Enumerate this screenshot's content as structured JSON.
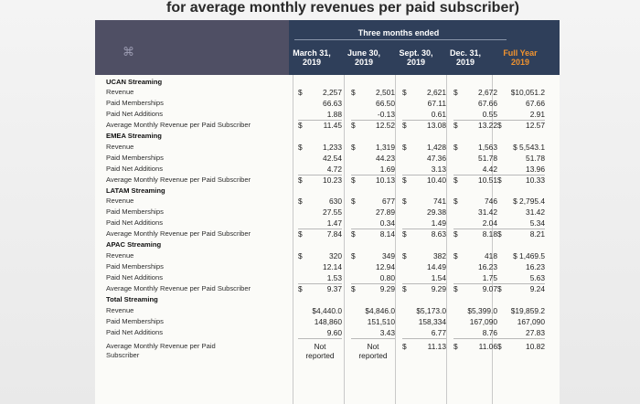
{
  "heading": "for average monthly revenues per paid subscriber)",
  "table": {
    "period_label": "Three months ended",
    "columns": [
      {
        "line1": "March 31,",
        "line2": "2019"
      },
      {
        "line1": "June 30,",
        "line2": "2019"
      },
      {
        "line1": "Sept. 30,",
        "line2": "2019"
      },
      {
        "line1": "Dec. 31,",
        "line2": "2019"
      },
      {
        "line1": "Full Year",
        "line2": "2019"
      }
    ],
    "rows": [
      {
        "label": "UCAN Streaming",
        "section": true
      },
      {
        "label": "Revenue",
        "values": [
          "2,257",
          "2,501",
          "2,621",
          "2,672",
          "$10,051.2"
        ],
        "dollar": [
          true,
          true,
          true,
          true,
          false
        ]
      },
      {
        "label": "Paid Memberships",
        "values": [
          "66.63",
          "66.50",
          "67.11",
          "67.66",
          "67.66"
        ]
      },
      {
        "label": "Paid Net Additions",
        "values": [
          "1.88",
          "-0.13",
          "0.61",
          "0.55",
          "2.91"
        ]
      },
      {
        "label": "Average Monthly Revenue per Paid Subscriber",
        "values": [
          "11.45",
          "12.52",
          "13.08",
          "13.22",
          "12.57"
        ],
        "dollar": [
          true,
          true,
          true,
          true,
          true
        ]
      },
      {
        "label": "EMEA Streaming",
        "section": true
      },
      {
        "label": "Revenue",
        "values": [
          "1,233",
          "1,319",
          "1,428",
          "1,563",
          "$ 5,543.1"
        ],
        "dollar": [
          true,
          true,
          true,
          true,
          false
        ]
      },
      {
        "label": "Paid Memberships",
        "values": [
          "42.54",
          "44.23",
          "47.36",
          "51.78",
          "51.78"
        ]
      },
      {
        "label": "Paid Net Additions",
        "values": [
          "4.72",
          "1.69",
          "3.13",
          "4.42",
          "13.96"
        ]
      },
      {
        "label": "Average Monthly Revenue per Paid Subscriber",
        "values": [
          "10.23",
          "10.13",
          "10.40",
          "10.51",
          "10.33"
        ],
        "dollar": [
          true,
          true,
          true,
          true,
          true
        ]
      },
      {
        "label": "LATAM Streaming",
        "section": true
      },
      {
        "label": "Revenue",
        "values": [
          "630",
          "677",
          "741",
          "746",
          "$ 2,795.4"
        ],
        "dollar": [
          true,
          true,
          true,
          true,
          false
        ]
      },
      {
        "label": "Paid Memberships",
        "values": [
          "27.55",
          "27.89",
          "29.38",
          "31.42",
          "31.42"
        ]
      },
      {
        "label": "Paid Net Additions",
        "values": [
          "1.47",
          "0.34",
          "1.49",
          "2.04",
          "5.34"
        ]
      },
      {
        "label": "Average Monthly Revenue per Paid Subscriber",
        "values": [
          "7.84",
          "8.14",
          "8.63",
          "8.18",
          "8.21"
        ],
        "dollar": [
          true,
          true,
          true,
          true,
          true
        ]
      },
      {
        "label": "APAC Streaming",
        "section": true
      },
      {
        "label": "Revenue",
        "values": [
          "320",
          "349",
          "382",
          "418",
          "$ 1,469.5"
        ],
        "dollar": [
          true,
          true,
          true,
          true,
          false
        ]
      },
      {
        "label": "Paid Memberships",
        "values": [
          "12.14",
          "12.94",
          "14.49",
          "16.23",
          "16.23"
        ]
      },
      {
        "label": "Paid Net Additions",
        "values": [
          "1.53",
          "0.80",
          "1.54",
          "1.75",
          "5.63"
        ]
      },
      {
        "label": "Average Monthly Revenue per Paid Subscriber",
        "values": [
          "9.37",
          "9.29",
          "9.29",
          "9.07",
          "9.24"
        ],
        "dollar": [
          true,
          true,
          true,
          true,
          true
        ]
      },
      {
        "label": "Total Streaming",
        "section": true
      },
      {
        "label": "Revenue",
        "values": [
          "$4,440.0",
          "$4,846.0",
          "$5,173.0",
          "$5,399.0",
          "$19,859.2"
        ]
      },
      {
        "label": "Paid Memberships",
        "values": [
          "148,860",
          "151,510",
          "158,334",
          "167,090",
          "167,090"
        ]
      },
      {
        "label": "Paid Net Additions",
        "values": [
          "9.60",
          "3.43",
          "6.77",
          "8.76",
          "27.83"
        ]
      },
      {
        "label": "Average Monthly Revenue per Paid Subscriber",
        "label_lines": [
          "Average Monthly Revenue per Paid",
          "Subscriber"
        ],
        "values": [
          "Not reported",
          "Not reported",
          "11.13",
          "11.06",
          "10.82"
        ],
        "dollar": [
          false,
          false,
          true,
          true,
          true
        ]
      }
    ],
    "currency_symbol": "$"
  },
  "colors": {
    "header_bg": "#2f3f5a",
    "logo_bg": "#4f4f64",
    "full_year_accent": "#f0932f"
  }
}
